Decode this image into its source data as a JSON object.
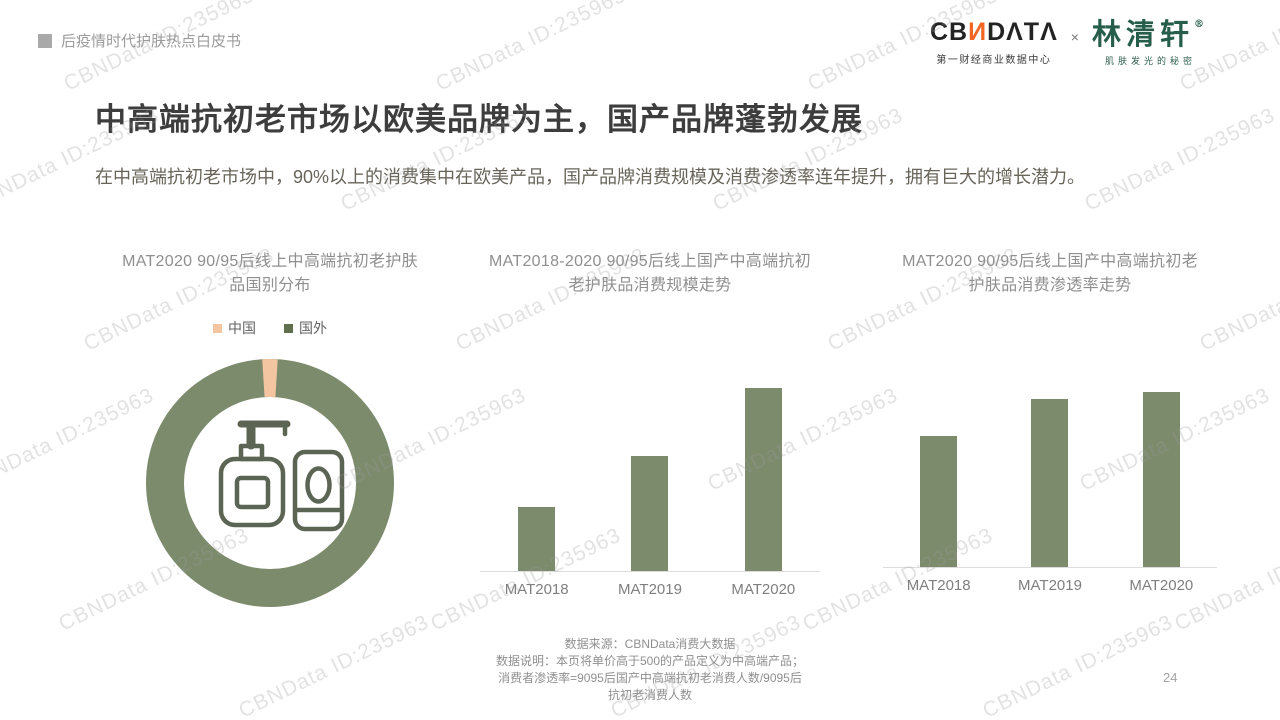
{
  "watermark": {
    "text": "CBNData ID:235963"
  },
  "header": {
    "doc_title": "后疫情时代护肤热点白皮书"
  },
  "logos": {
    "cbndata": {
      "part1": "CB",
      "part2": "И",
      "part3": "DΛTΛ",
      "tagline": "第一财经商业数据中心"
    },
    "separator": "×",
    "linqingxuan": {
      "name": "林清轩",
      "reg": "®",
      "tagline": "肌肤发光的秘密"
    }
  },
  "title": "中高端抗初老市场以欧美品牌为主，国产品牌蓬勃发展",
  "subtitle": "在中高端抗初老市场中，90%以上的消费集中在欧美产品，国产品牌消费规模及消费渗透率连年提升，拥有巨大的增长潜力。",
  "colors": {
    "series_green": "#7d8b6d",
    "china_peach": "#f4c5a1",
    "legend_green": "#5f7050",
    "brand_orange": "#f26522",
    "brand_green": "#265e4b"
  },
  "chart_data": [
    {
      "type": "pie",
      "donut": true,
      "title": "MAT2020 90/95后线上中高端抗初老护肤品国别分布",
      "labels": [
        "中国",
        "国外"
      ],
      "values": [
        2,
        98
      ],
      "unit": "%",
      "legend_position": "top",
      "center_icon": "skincare-products-icon",
      "note": "shares estimated from arc angles; no data labels shown"
    },
    {
      "type": "bar",
      "title": "MAT2018-2020 90/95后线上国产中高端抗初老护肤品消费规模走势",
      "categories": [
        "MAT2018",
        "MAT2019",
        "MAT2020"
      ],
      "values": [
        35,
        63,
        100
      ],
      "xlabel": "",
      "ylabel": "",
      "note": "relative bar heights (index, max=100); y-axis unlabeled, no gridlines"
    },
    {
      "type": "bar",
      "title": "MAT2020 90/95后线上国产中高端抗初老护肤品消费渗透率走势",
      "categories": [
        "MAT2018",
        "MAT2019",
        "MAT2020"
      ],
      "values": [
        75,
        96,
        100
      ],
      "xlabel": "",
      "ylabel": "",
      "note": "relative bar heights (index, max=100); y-axis unlabeled, no gridlines"
    }
  ],
  "footnote": {
    "lines": [
      "数据来源：CBNData消费大数据",
      "数据说明：本页将单价高于500的产品定义为中高端产品；",
      "消费者渗透率=9095后国产中高端抗初老消费人数/9095后",
      "抗初老消费人数"
    ]
  },
  "page_number": "24"
}
